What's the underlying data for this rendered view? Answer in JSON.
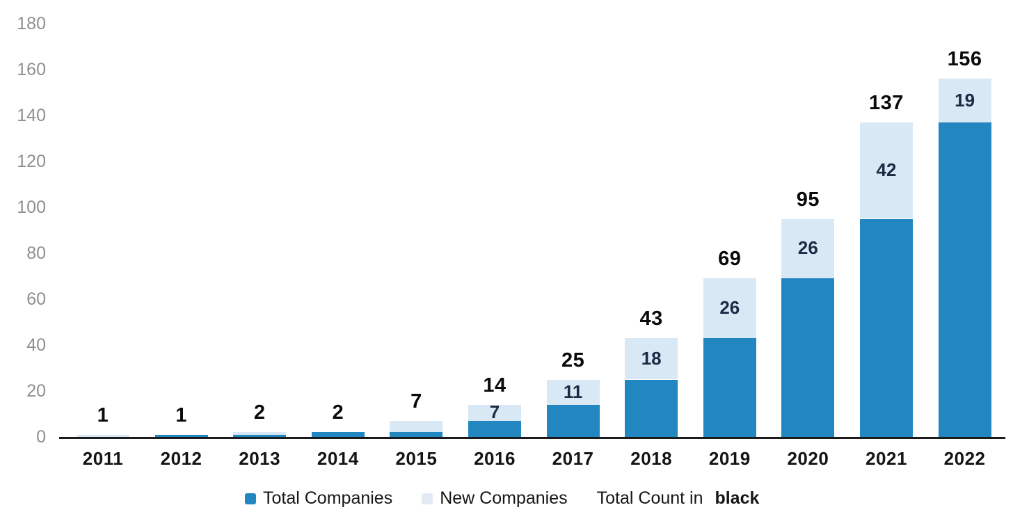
{
  "chart_data": {
    "type": "bar",
    "stacked": true,
    "categories": [
      "2011",
      "2012",
      "2013",
      "2014",
      "2015",
      "2016",
      "2017",
      "2018",
      "2019",
      "2020",
      "2021",
      "2022"
    ],
    "series": [
      {
        "name": "Total Companies",
        "color": "#2286c0",
        "values": [
          0,
          1,
          1,
          2,
          2,
          7,
          14,
          25,
          43,
          69,
          95,
          137
        ]
      },
      {
        "name": "New Companies",
        "color": "#d9e8f5",
        "values": [
          1,
          0,
          1,
          0,
          5,
          7,
          11,
          18,
          26,
          26,
          42,
          19
        ]
      }
    ],
    "total_counts": [
      1,
      1,
      2,
      2,
      7,
      14,
      25,
      43,
      69,
      95,
      137,
      156
    ],
    "segment_labels": [
      "",
      "",
      "",
      "",
      "",
      "7",
      "11",
      "18",
      "26",
      "26",
      "42",
      "19"
    ],
    "ylim": [
      0,
      180
    ],
    "y_ticks": [
      0,
      20,
      40,
      60,
      80,
      100,
      120,
      140,
      160,
      180
    ],
    "grid": false,
    "legend_position": "bottom",
    "xlabel": "",
    "ylabel": ""
  },
  "legend": {
    "total_companies": "Total Companies",
    "new_companies": "New Companies",
    "total_count_prefix": "Total Count in ",
    "total_count_bold": "black"
  },
  "colors": {
    "total_companies": "#2286c0",
    "new_companies": "#d9e8f5",
    "new_legend_swatch": "#e2ebf4",
    "axis_line": "#1c1c1c",
    "y_tick_label": "#8f8f8f",
    "x_tick_label": "#141414",
    "total_label": "#0a0a0a",
    "segment_label": "#1c2b45"
  }
}
